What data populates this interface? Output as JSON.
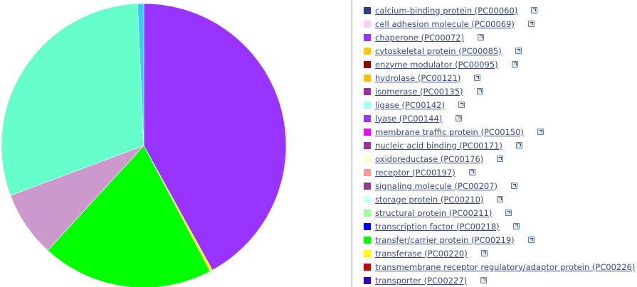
{
  "legend": {
    "items": [
      {
        "label": "calcium-binding protein (PC00060)",
        "color": "#2e3a8c"
      },
      {
        "label": "cell adhesion molecule (PC00069)",
        "color": "#ffccff"
      },
      {
        "label": "chaperone (PC00072)",
        "color": "#9933ff"
      },
      {
        "label": "cytoskeletal protein (PC00085)",
        "color": "#ffcc00"
      },
      {
        "label": "enzyme modulator (PC00095)",
        "color": "#990000"
      },
      {
        "label": "hydrolase (PC00121)",
        "color": "#ffc000"
      },
      {
        "label": "isomerase (PC00135)",
        "color": "#993399"
      },
      {
        "label": "ligase (PC00142)",
        "color": "#99ffff"
      },
      {
        "label": "lyase (PC00144)",
        "color": "#9933ff"
      },
      {
        "label": "membrane traffic protein (PC00150)",
        "color": "#ff00ff"
      },
      {
        "label": "nucleic acid binding (PC00171)",
        "color": "#993399"
      },
      {
        "label": "oxidoreductase (PC00176)",
        "color": "#ffffcc"
      },
      {
        "label": "receptor (PC00197)",
        "color": "#ff9999"
      },
      {
        "label": "signaling molecule (PC00207)",
        "color": "#993399"
      },
      {
        "label": "storage protein (PC00210)",
        "color": "#ccffff"
      },
      {
        "label": "structural protein (PC00211)",
        "color": "#99ff99"
      },
      {
        "label": "transcription factor (PC00218)",
        "color": "#0000ff"
      },
      {
        "label": "transfer/carrier protein (PC00219)",
        "color": "#00ff00"
      },
      {
        "label": "transferase (PC00220)",
        "color": "#ffff00"
      },
      {
        "label": "transmembrane receptor regulatory/adaptor protein (PC00226)",
        "color": "#cc0000"
      },
      {
        "label": "transporter (PC00227)",
        "color": "#3300cc"
      }
    ]
  },
  "chart_data": {
    "type": "pie",
    "title": "",
    "slices": [
      {
        "category": "chaperone (PC00072)",
        "value": 42.0,
        "color": "#9933ff"
      },
      {
        "category": "transferase (PC00220)",
        "value": 0.3,
        "color": "#ffff00"
      },
      {
        "category": "transfer/carrier protein (PC00219)",
        "value": 19.5,
        "color": "#00ff00"
      },
      {
        "category": "isomerase (PC00135)",
        "value": 7.5,
        "color": "#cc99cc"
      },
      {
        "category": "",
        "value": 30.0,
        "color": "#66ffcc"
      },
      {
        "category": "",
        "value": 0.7,
        "color": "#33ccff"
      }
    ]
  }
}
